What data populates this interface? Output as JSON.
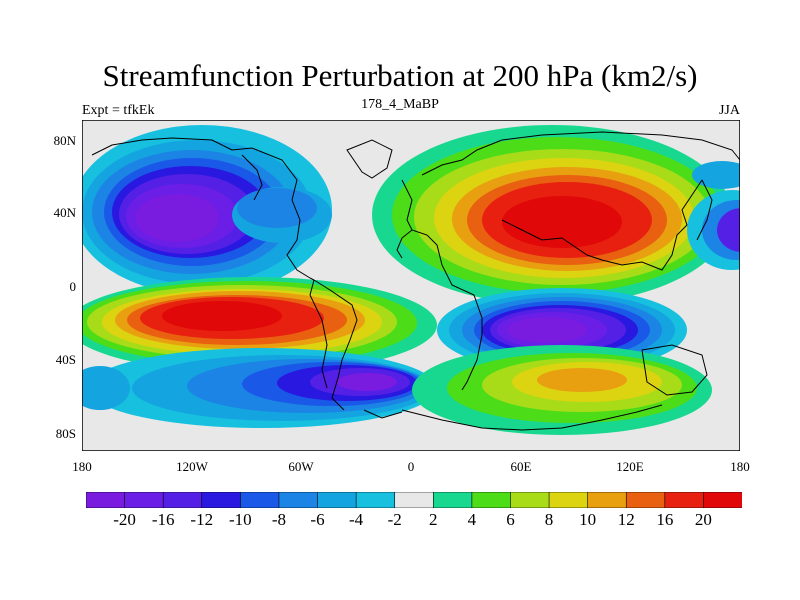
{
  "title": "Streamfunction Perturbation at 200 hPa (km2/s)",
  "subtitle_left": "Expt = tfkEk",
  "subtitle_center": "178_4_MaBP",
  "subtitle_right": "JJA",
  "x_ticks": [
    "180",
    "120W",
    "60W",
    "0",
    "60E",
    "120E",
    "180"
  ],
  "y_ticks": [
    "80N",
    "40N",
    "0",
    "40S",
    "80S"
  ],
  "colorbar": {
    "labels": [
      "-20",
      "-16",
      "-12",
      "-10",
      "-8",
      "-6",
      "-4",
      "-2",
      "2",
      "4",
      "6",
      "8",
      "10",
      "12",
      "16",
      "20"
    ],
    "colors": [
      "#7a1be0",
      "#6a1ee6",
      "#5420e6",
      "#2818e0",
      "#1a58e8",
      "#1c84e4",
      "#14a4e0",
      "#18c0e0",
      "#e8e8e8",
      "#18d890",
      "#4cdc18",
      "#a8dc18",
      "#dcd410",
      "#e8a010",
      "#e86010",
      "#e82010",
      "#e00808"
    ]
  },
  "colors": {
    "background": "#ffffff",
    "map_neutral": "#e8e8e8",
    "coastline": "#000000"
  }
}
